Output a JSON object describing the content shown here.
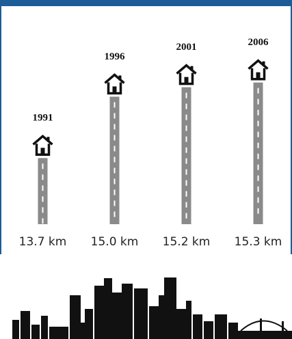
{
  "chart_data": {
    "type": "bar",
    "categories": [
      "1991",
      "1996",
      "2001",
      "2006"
    ],
    "values": [
      13.7,
      15.0,
      15.2,
      15.3
    ],
    "value_labels": [
      "13.7 km",
      "15.0 km",
      "15.2 km",
      "15.3 km"
    ],
    "color": "#8a8a8a",
    "ylim": [
      12.3,
      15.6
    ]
  }
}
